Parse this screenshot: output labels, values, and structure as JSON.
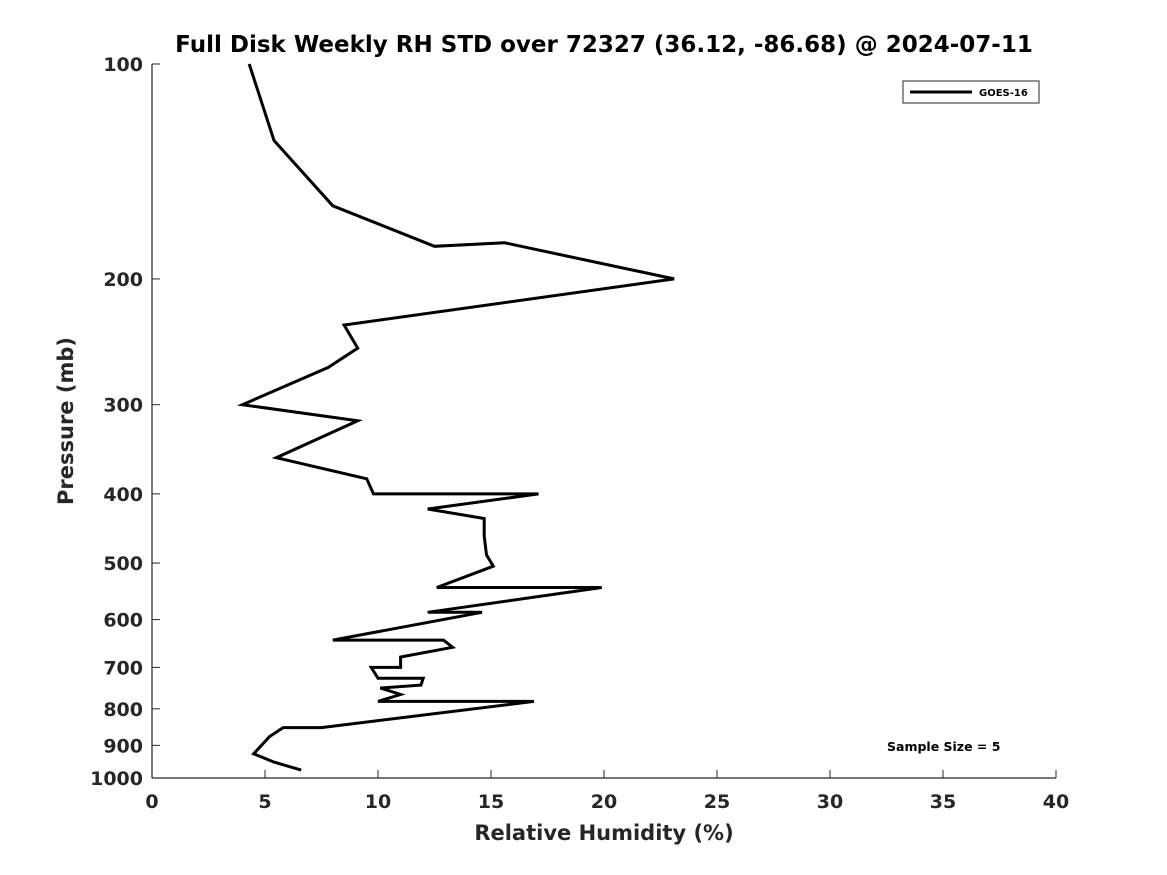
{
  "chart_data": {
    "type": "line",
    "title": "Full Disk Weekly RH STD over 72327 (36.12, -86.68) @ 2024-07-11",
    "xlabel": "Relative Humidity (%)",
    "ylabel": "Pressure (mb)",
    "xlim": [
      0,
      40
    ],
    "ylim": [
      100,
      1000
    ],
    "yscale": "log",
    "y_reversed": true,
    "xticks": [
      0,
      5,
      10,
      15,
      20,
      25,
      30,
      35,
      40
    ],
    "yticks": [
      100,
      200,
      300,
      400,
      500,
      600,
      700,
      800,
      900,
      1000
    ],
    "grid": false,
    "legend": {
      "location": "top-right",
      "entries": [
        "GOES-16"
      ]
    },
    "annotation": "Sample Size = 5",
    "series": [
      {
        "name": "GOES-16",
        "color": "#000000",
        "x": [
          4.3,
          5.4,
          8.0,
          12.5,
          15.6,
          23.1,
          8.5,
          9.1,
          7.8,
          4.0,
          9.1,
          5.5,
          9.5,
          9.8,
          17.1,
          12.2,
          14.7,
          14.7,
          14.8,
          15.1,
          12.6,
          19.9,
          12.2,
          14.6,
          8.0,
          12.9,
          13.3,
          11.0,
          11.0,
          9.7,
          10.0,
          12.0,
          11.9,
          10.1,
          11.0,
          10.0,
          16.9,
          7.5,
          5.8,
          5.2,
          4.5,
          5.4,
          6.6
        ],
        "y": [
          100,
          128,
          158,
          180,
          178,
          200,
          232,
          250,
          266,
          300,
          316,
          356,
          381,
          400,
          400,
          420,
          433,
          458,
          487,
          505,
          541,
          541,
          586,
          586,
          641,
          641,
          656,
          677,
          700,
          700,
          725,
          725,
          741,
          748,
          764,
          781,
          781,
          850,
          850,
          875,
          925,
          950,
          975
        ]
      }
    ]
  }
}
